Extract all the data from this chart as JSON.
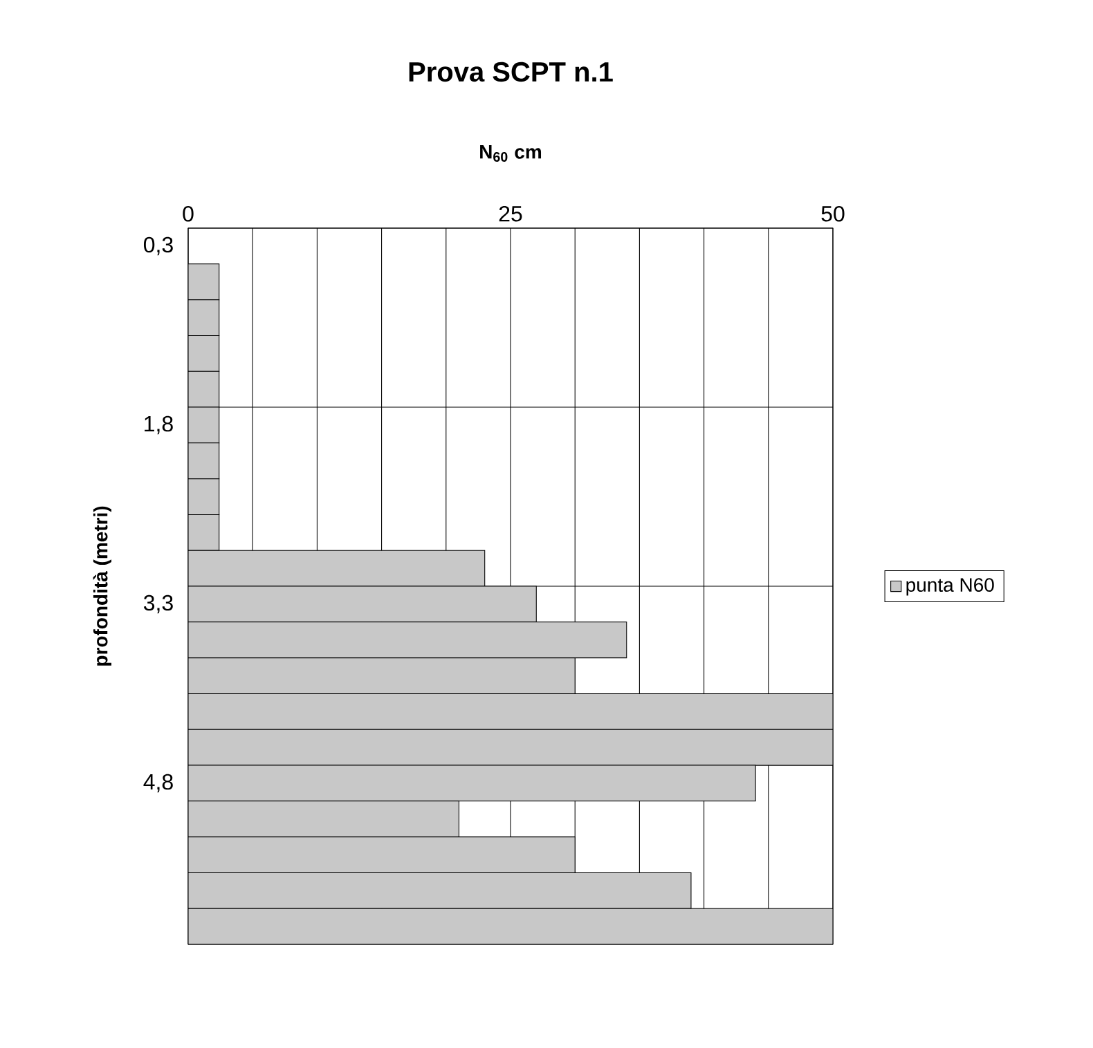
{
  "chart_data": {
    "type": "bar",
    "orientation": "horizontal",
    "title": "Prova SCPT n.1",
    "xlabel": "N$_{60}$ cm",
    "ylabel": "profondità (metri)",
    "categories": [
      "0,3",
      null,
      null,
      null,
      null,
      "1,8",
      null,
      null,
      null,
      null,
      "3,3",
      null,
      null,
      null,
      null,
      "4,8",
      null,
      null,
      null,
      null
    ],
    "series": [
      {
        "name": "punta N60",
        "color": "#c8c8c8",
        "values": [
          null,
          2.4,
          2.4,
          2.4,
          2.4,
          2.4,
          2.4,
          2.4,
          2.4,
          23,
          27,
          34,
          30,
          50,
          50,
          44,
          21,
          30,
          39,
          50
        ]
      }
    ],
    "xlim": [
      0,
      50
    ],
    "xticks": [
      0,
      {
        "value": 5,
        "label": null
      },
      {
        "value": 10,
        "label": null
      },
      {
        "value": 15,
        "label": null
      },
      {
        "value": 20,
        "label": null
      },
      25,
      {
        "value": 30,
        "label": null
      },
      {
        "value": 35,
        "label": null
      },
      {
        "value": 40,
        "label": null
      },
      {
        "value": 45,
        "label": null
      },
      50
    ],
    "grid": true,
    "legend": "right"
  }
}
